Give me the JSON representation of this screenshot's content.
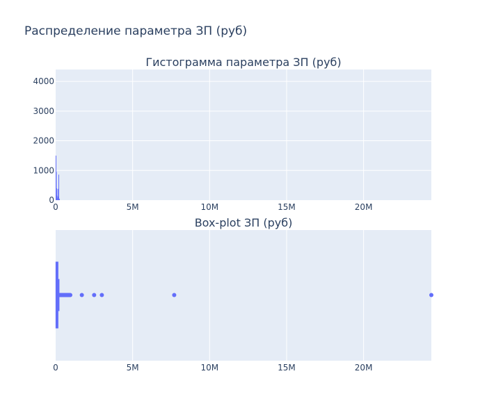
{
  "title": "Распределение параметра ЗП (руб)",
  "colors": {
    "plot_bg": "#e5ecf6",
    "grid": "#ffffff",
    "series": "#636efa",
    "text": "#2a3f5f",
    "page_bg": "#ffffff"
  },
  "chart_data": [
    {
      "type": "histogram",
      "title": "Гистограмма параметра ЗП (руб)",
      "xlabel": "",
      "ylabel": "",
      "xlim": [
        0,
        24400000
      ],
      "ylim": [
        0,
        4400
      ],
      "x_tick_values": [
        0,
        5000000,
        10000000,
        15000000,
        20000000
      ],
      "x_tick_labels": [
        "0",
        "5M",
        "10M",
        "15M",
        "20M"
      ],
      "y_tick_values": [
        0,
        1000,
        2000,
        3000,
        4000
      ],
      "y_tick_labels": [
        "0",
        "1000",
        "2000",
        "3000",
        "4000"
      ],
      "grid": true,
      "bins": [
        {
          "x0": 0,
          "x1": 20000,
          "count": 1500
        },
        {
          "x0": 20000,
          "x1": 40000,
          "count": 950
        },
        {
          "x0": 40000,
          "x1": 60000,
          "count": 400
        },
        {
          "x0": 60000,
          "x1": 80000,
          "count": 150
        },
        {
          "x0": 80000,
          "x1": 100000,
          "count": 80
        },
        {
          "x0": 120000,
          "x1": 140000,
          "count": 380
        },
        {
          "x0": 140000,
          "x1": 160000,
          "count": 120
        },
        {
          "x0": 180000,
          "x1": 200000,
          "count": 860
        },
        {
          "x0": 220000,
          "x1": 240000,
          "count": 50
        }
      ]
    },
    {
      "type": "box",
      "orientation": "horizontal",
      "title": "Box-plot ЗП (руб)",
      "xlabel": "",
      "ylabel": "",
      "xlim": [
        0,
        24400000
      ],
      "x_tick_values": [
        0,
        5000000,
        10000000,
        15000000,
        20000000
      ],
      "x_tick_labels": [
        "0",
        "5M",
        "10M",
        "15M",
        "20M"
      ],
      "grid": true,
      "box": {
        "lowerfence": 0,
        "q1": 40000,
        "median": 60000,
        "q3": 90000,
        "upperfence": 200000
      },
      "outliers": [
        250000,
        300000,
        350000,
        400000,
        450000,
        500000,
        550000,
        600000,
        650000,
        700000,
        750000,
        800000,
        850000,
        900000,
        950000,
        1700000,
        2500000,
        3000000,
        7700000,
        24400000
      ]
    }
  ]
}
